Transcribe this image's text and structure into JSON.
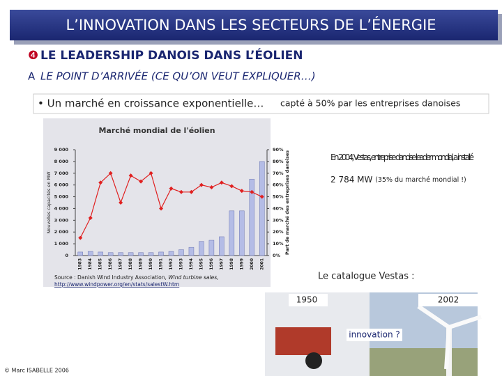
{
  "header": {
    "title": "L’INNOVATION DANS LES SECTEURS DE L’ÉNERGIE"
  },
  "section": {
    "number": "❹",
    "title": "LE LEADERSHIP DANOIS DANS L’ÉOLIEN",
    "letter": "A",
    "subtitle": "LE POINT D’ARRIVÉE (CE QU’ON VEUT EXPLIQUER…)"
  },
  "bullet": {
    "main": "• Un marché en croissance exponentielle…",
    "rest": "capté à 50% par les entreprises danoises"
  },
  "chart_data": {
    "type": "bar-line",
    "title": "Marché mondial de l'éolien",
    "y_label": "Nouvelles capacités en MW",
    "y2_label": "Part de marché des entreprises danoises",
    "categories": [
      "1983",
      "1984",
      "1985",
      "1986",
      "1987",
      "1988",
      "1989",
      "1990",
      "1991",
      "1992",
      "1993",
      "1994",
      "1995",
      "1996",
      "1997",
      "1998",
      "1999",
      "2000",
      "2001"
    ],
    "series": [
      {
        "name": "Nouvelles capacités",
        "color": "#b4bce6",
        "values": [
          300,
          350,
          300,
          250,
          250,
          250,
          250,
          250,
          300,
          350,
          500,
          700,
          1200,
          1300,
          1600,
          3800,
          3800,
          6500,
          8000
        ]
      },
      {
        "name": "Part de marché",
        "color": "#e02020",
        "axis": "y2",
        "values": [
          15,
          32,
          62,
          70,
          45,
          68,
          63,
          70,
          40,
          57,
          54,
          54,
          60,
          58,
          62,
          59,
          55,
          54,
          50
        ]
      }
    ],
    "ylim": [
      0,
      9000
    ],
    "yticks": [
      0,
      {
        "value": 1000,
        "label": "1 000"
      },
      {
        "value": 2000,
        "label": "2 000"
      },
      {
        "value": 3000,
        "label": "3 000"
      },
      {
        "value": 4000,
        "label": "4 000"
      },
      {
        "value": 5000,
        "label": "5 000"
      },
      {
        "value": 6000,
        "label": "6 000"
      },
      {
        "value": 7000,
        "label": "7 000"
      },
      {
        "value": 8000,
        "label": "8 000"
      },
      {
        "value": 9000,
        "label": "9 000"
      }
    ],
    "y2lim": [
      0,
      90
    ],
    "y2ticks": [
      {
        "value": 0,
        "label": "0%"
      },
      {
        "value": 10,
        "label": "10%"
      },
      {
        "value": 20,
        "label": "20%"
      },
      {
        "value": 30,
        "label": "30%"
      },
      {
        "value": 40,
        "label": "40%"
      },
      {
        "value": 50,
        "label": "50%"
      },
      {
        "value": 60,
        "label": "60%"
      },
      {
        "value": 70,
        "label": "70%"
      },
      {
        "value": 80,
        "label": "80%"
      },
      {
        "value": 90,
        "label": "90%"
      }
    ]
  },
  "source": {
    "prefix": "Source : Danish Wind Industry Association, ",
    "italic": "Wind turbine sales,",
    "url": "http://www.windpower.org/en/stats/salestW.htm"
  },
  "callout": {
    "main": "En 2004, Vestas, entreprise danoise leader mondial, a installé",
    "last": "2 784 MW",
    "note": "(35% du marché mondial !)"
  },
  "catalogue": {
    "title": "Le catalogue Vestas :",
    "left": "1950",
    "right": "2002",
    "question": "innovation ?"
  },
  "footer": "© Marc ISABELLE 2006"
}
